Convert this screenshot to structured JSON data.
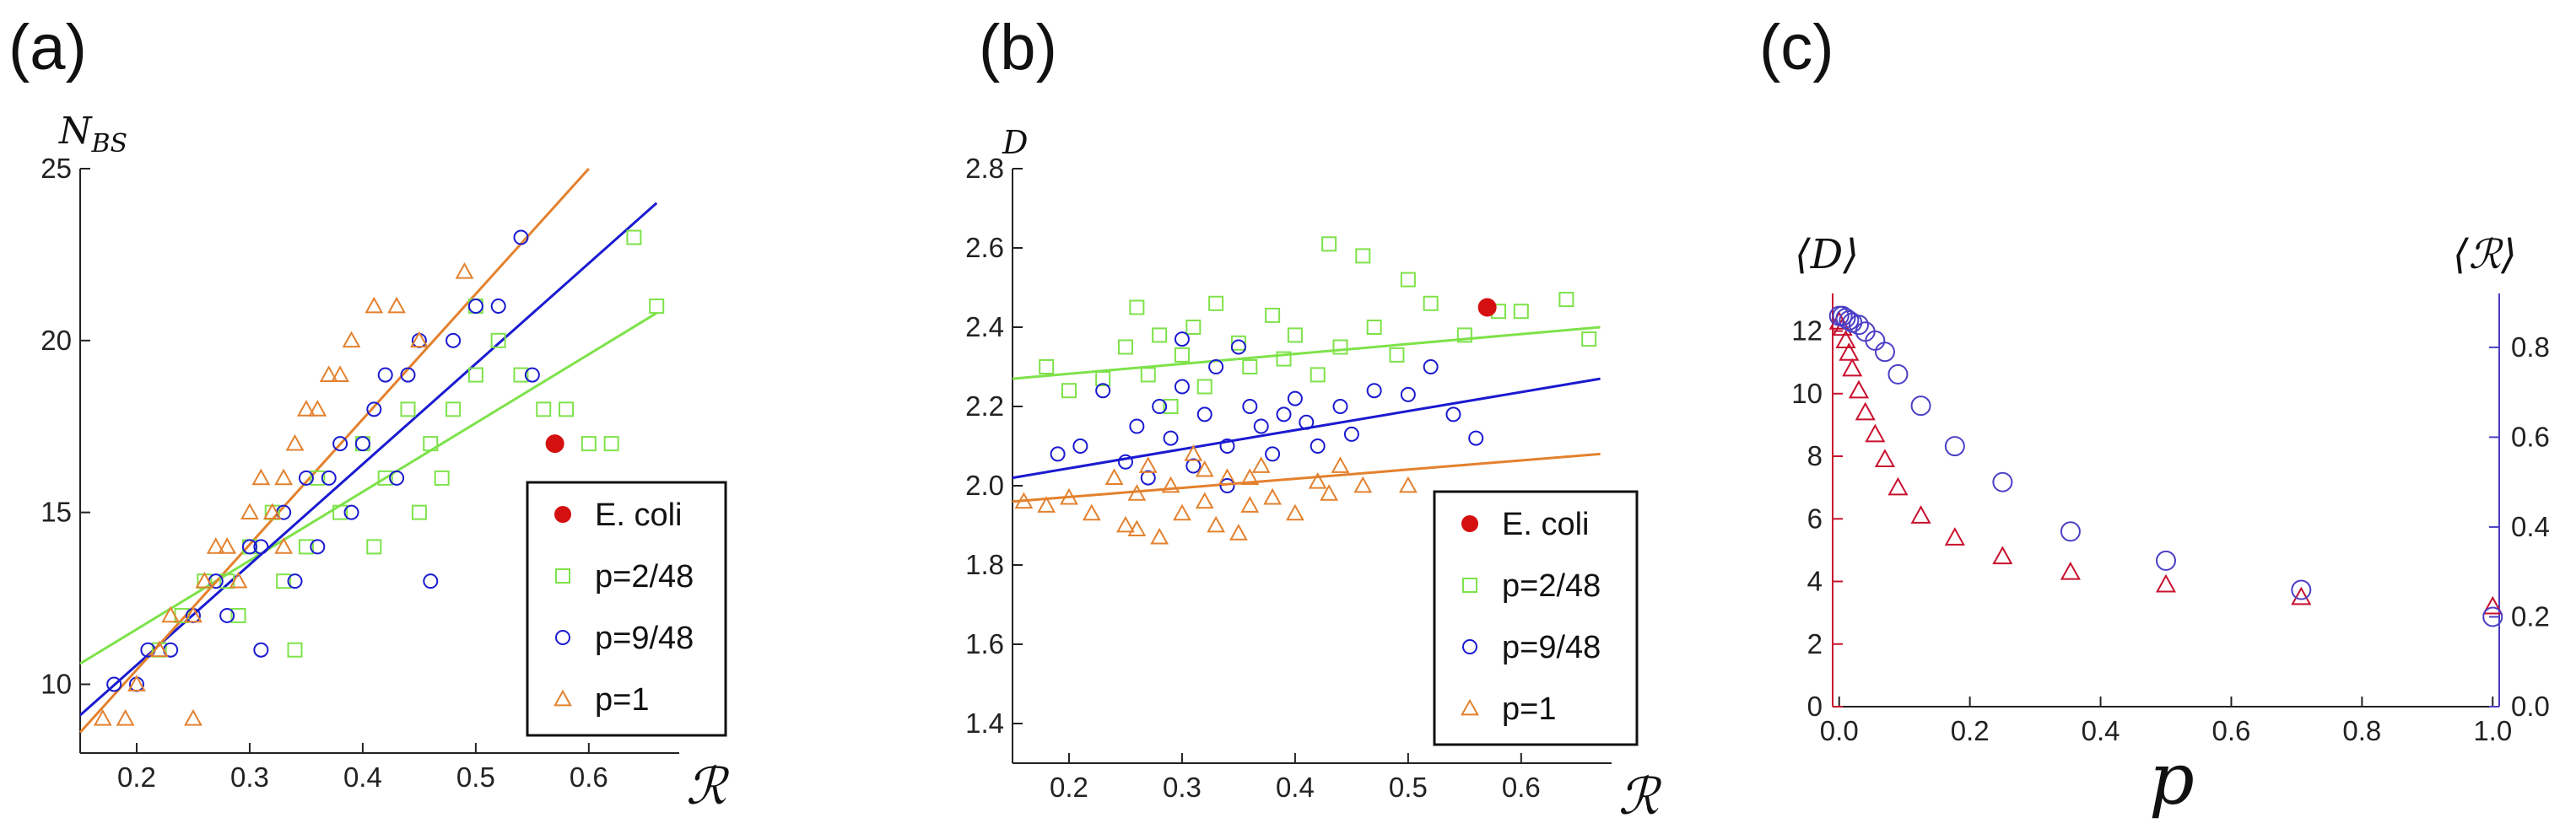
{
  "figure": {
    "colors": {
      "ecoli": "#d41010",
      "p2_48": "#7ee24a",
      "p9_48": "#1a1ad0",
      "p1": "#e3812e",
      "axis": "#222222",
      "c_left_axis": "#c8102e",
      "c_right_axis": "#4b3fc6"
    }
  },
  "chart_data": [
    {
      "id": "a",
      "panel_label": "(a)",
      "type": "scatter",
      "xlabel": "ℛ",
      "ylabel": "N_BS",
      "ylabel_main": "N",
      "ylabel_sub": "BS",
      "xlim": [
        0.15,
        0.68
      ],
      "ylim": [
        8.0,
        25.0
      ],
      "xticks": [
        0.2,
        0.3,
        0.4,
        0.5,
        0.6
      ],
      "yticks": [
        10,
        15,
        20,
        25
      ],
      "legend": {
        "placement": "bottom-right",
        "entries": [
          "E. coli",
          "p=2/48",
          "p=9/48",
          "p=1"
        ]
      },
      "series": [
        {
          "name": "p=2/48",
          "marker": "square",
          "points": [
            [
              0.22,
              11
            ],
            [
              0.24,
              12
            ],
            [
              0.26,
              13
            ],
            [
              0.28,
              13
            ],
            [
              0.3,
              14
            ],
            [
              0.32,
              15
            ],
            [
              0.33,
              13
            ],
            [
              0.35,
              14
            ],
            [
              0.36,
              16
            ],
            [
              0.38,
              15
            ],
            [
              0.4,
              17
            ],
            [
              0.42,
              16
            ],
            [
              0.44,
              18
            ],
            [
              0.46,
              17
            ],
            [
              0.48,
              18
            ],
            [
              0.5,
              19
            ],
            [
              0.52,
              20
            ],
            [
              0.54,
              19
            ],
            [
              0.56,
              18
            ],
            [
              0.58,
              18
            ],
            [
              0.6,
              17
            ],
            [
              0.62,
              17
            ],
            [
              0.64,
              23
            ],
            [
              0.66,
              21
            ],
            [
              0.34,
              11
            ],
            [
              0.29,
              12
            ],
            [
              0.47,
              16
            ],
            [
              0.5,
              21
            ],
            [
              0.45,
              15
            ],
            [
              0.41,
              14
            ]
          ]
        },
        {
          "name": "p=9/48",
          "marker": "circle",
          "points": [
            [
              0.18,
              10
            ],
            [
              0.2,
              10
            ],
            [
              0.21,
              11
            ],
            [
              0.23,
              11
            ],
            [
              0.25,
              12
            ],
            [
              0.27,
              13
            ],
            [
              0.28,
              12
            ],
            [
              0.3,
              14
            ],
            [
              0.31,
              14
            ],
            [
              0.33,
              15
            ],
            [
              0.34,
              13
            ],
            [
              0.35,
              16
            ],
            [
              0.37,
              16
            ],
            [
              0.38,
              17
            ],
            [
              0.4,
              17
            ],
            [
              0.41,
              18
            ],
            [
              0.42,
              19
            ],
            [
              0.44,
              19
            ],
            [
              0.45,
              20
            ],
            [
              0.46,
              13
            ],
            [
              0.48,
              20
            ],
            [
              0.5,
              21
            ],
            [
              0.52,
              21
            ],
            [
              0.54,
              23
            ],
            [
              0.55,
              19
            ],
            [
              0.57,
              17
            ],
            [
              0.36,
              14
            ],
            [
              0.39,
              15
            ],
            [
              0.43,
              16
            ],
            [
              0.31,
              11
            ]
          ]
        },
        {
          "name": "p=1",
          "marker": "triangle",
          "points": [
            [
              0.17,
              9
            ],
            [
              0.19,
              9
            ],
            [
              0.2,
              10
            ],
            [
              0.22,
              11
            ],
            [
              0.23,
              12
            ],
            [
              0.25,
              12
            ],
            [
              0.26,
              13
            ],
            [
              0.27,
              14
            ],
            [
              0.28,
              14
            ],
            [
              0.3,
              15
            ],
            [
              0.31,
              16
            ],
            [
              0.32,
              15
            ],
            [
              0.33,
              16
            ],
            [
              0.34,
              17
            ],
            [
              0.35,
              18
            ],
            [
              0.36,
              18
            ],
            [
              0.37,
              19
            ],
            [
              0.38,
              19
            ],
            [
              0.39,
              20
            ],
            [
              0.41,
              21
            ],
            [
              0.43,
              21
            ],
            [
              0.45,
              20
            ],
            [
              0.49,
              22
            ],
            [
              0.25,
              9
            ],
            [
              0.29,
              13
            ],
            [
              0.33,
              14
            ]
          ]
        },
        {
          "name": "E. coli",
          "marker": "dot",
          "points": [
            [
              0.57,
              17
            ]
          ]
        }
      ],
      "fits": [
        {
          "series": "p=2/48",
          "from": [
            0.15,
            10.6
          ],
          "to": [
            0.66,
            20.8
          ]
        },
        {
          "series": "p=9/48",
          "from": [
            0.15,
            9.1
          ],
          "to": [
            0.66,
            24.0
          ]
        },
        {
          "series": "p=1",
          "from": [
            0.15,
            8.6
          ],
          "to": [
            0.6,
            25.0
          ]
        }
      ]
    },
    {
      "id": "b",
      "panel_label": "(b)",
      "type": "scatter",
      "xlabel": "ℛ",
      "ylabel": "D",
      "xlim": [
        0.15,
        0.68
      ],
      "ylim": [
        1.3,
        2.8
      ],
      "xticks": [
        0.2,
        0.3,
        0.4,
        0.5,
        0.6
      ],
      "yticks": [
        1.4,
        1.6,
        1.8,
        2.0,
        2.2,
        2.4,
        2.6,
        2.8
      ],
      "legend": {
        "placement": "bottom-right",
        "entries": [
          "E. coli",
          "p=2/48",
          "p=9/48",
          "p=1"
        ]
      },
      "series": [
        {
          "name": "p=2/48",
          "marker": "square",
          "points": [
            [
              0.18,
              2.3
            ],
            [
              0.2,
              2.24
            ],
            [
              0.23,
              2.27
            ],
            [
              0.25,
              2.35
            ],
            [
              0.26,
              2.45
            ],
            [
              0.27,
              2.28
            ],
            [
              0.28,
              2.38
            ],
            [
              0.3,
              2.33
            ],
            [
              0.31,
              2.4
            ],
            [
              0.32,
              2.25
            ],
            [
              0.33,
              2.46
            ],
            [
              0.35,
              2.36
            ],
            [
              0.36,
              2.3
            ],
            [
              0.38,
              2.43
            ],
            [
              0.39,
              2.32
            ],
            [
              0.4,
              2.38
            ],
            [
              0.42,
              2.28
            ],
            [
              0.43,
              2.61
            ],
            [
              0.44,
              2.35
            ],
            [
              0.46,
              2.58
            ],
            [
              0.47,
              2.4
            ],
            [
              0.49,
              2.33
            ],
            [
              0.5,
              2.52
            ],
            [
              0.52,
              2.46
            ],
            [
              0.55,
              2.38
            ],
            [
              0.58,
              2.44
            ],
            [
              0.6,
              2.44
            ],
            [
              0.64,
              2.47
            ],
            [
              0.66,
              2.37
            ],
            [
              0.29,
              2.2
            ]
          ]
        },
        {
          "name": "p=9/48",
          "marker": "circle",
          "points": [
            [
              0.19,
              2.08
            ],
            [
              0.21,
              2.1
            ],
            [
              0.23,
              2.24
            ],
            [
              0.25,
              2.06
            ],
            [
              0.26,
              2.15
            ],
            [
              0.28,
              2.2
            ],
            [
              0.29,
              2.12
            ],
            [
              0.3,
              2.25
            ],
            [
              0.31,
              2.05
            ],
            [
              0.32,
              2.18
            ],
            [
              0.33,
              2.3
            ],
            [
              0.34,
              2.1
            ],
            [
              0.35,
              2.35
            ],
            [
              0.36,
              2.2
            ],
            [
              0.37,
              2.15
            ],
            [
              0.38,
              2.08
            ],
            [
              0.39,
              2.18
            ],
            [
              0.4,
              2.22
            ],
            [
              0.42,
              2.1
            ],
            [
              0.44,
              2.2
            ],
            [
              0.45,
              2.13
            ],
            [
              0.47,
              2.24
            ],
            [
              0.5,
              2.23
            ],
            [
              0.52,
              2.3
            ],
            [
              0.54,
              2.18
            ],
            [
              0.56,
              2.12
            ],
            [
              0.27,
              2.02
            ],
            [
              0.34,
              2.0
            ],
            [
              0.41,
              2.16
            ],
            [
              0.3,
              2.37
            ]
          ]
        },
        {
          "name": "p=1",
          "marker": "triangle",
          "points": [
            [
              0.16,
              1.96
            ],
            [
              0.18,
              1.95
            ],
            [
              0.2,
              1.97
            ],
            [
              0.22,
              1.93
            ],
            [
              0.24,
              2.02
            ],
            [
              0.25,
              1.9
            ],
            [
              0.26,
              1.98
            ],
            [
              0.27,
              2.05
            ],
            [
              0.28,
              1.87
            ],
            [
              0.29,
              2.0
            ],
            [
              0.3,
              1.93
            ],
            [
              0.31,
              2.08
            ],
            [
              0.32,
              1.96
            ],
            [
              0.33,
              1.9
            ],
            [
              0.34,
              2.02
            ],
            [
              0.35,
              1.88
            ],
            [
              0.36,
              1.95
            ],
            [
              0.37,
              2.05
            ],
            [
              0.38,
              1.97
            ],
            [
              0.4,
              1.93
            ],
            [
              0.42,
              2.01
            ],
            [
              0.44,
              2.05
            ],
            [
              0.46,
              2.0
            ],
            [
              0.5,
              2.0
            ],
            [
              0.26,
              1.89
            ],
            [
              0.32,
              2.04
            ],
            [
              0.36,
              2.02
            ],
            [
              0.43,
              1.98
            ]
          ]
        },
        {
          "name": "E. coli",
          "marker": "dot",
          "points": [
            [
              0.57,
              2.45
            ]
          ]
        }
      ],
      "fits": [
        {
          "series": "p=2/48",
          "from": [
            0.15,
            2.27
          ],
          "to": [
            0.67,
            2.4
          ]
        },
        {
          "series": "p=9/48",
          "from": [
            0.15,
            2.02
          ],
          "to": [
            0.67,
            2.27
          ]
        },
        {
          "series": "p=1",
          "from": [
            0.15,
            1.96
          ],
          "to": [
            0.67,
            2.08
          ]
        }
      ]
    },
    {
      "id": "c",
      "panel_label": "(c)",
      "type": "scatter",
      "xlabel": "p",
      "ylabel_left": "⟨D⟩",
      "ylabel_right": "⟨ℛ⟩",
      "xlim": [
        -0.01,
        1.01
      ],
      "ylim_left": [
        0,
        13.2
      ],
      "ylim_right": [
        0,
        0.92
      ],
      "xticks": [
        0.0,
        0.2,
        0.4,
        0.6,
        0.8,
        1.0
      ],
      "yticks_left": [
        0,
        2,
        4,
        6,
        8,
        10,
        12
      ],
      "yticks_right": [
        0.0,
        0.2,
        0.4,
        0.6,
        0.8
      ],
      "series": [
        {
          "name": "⟨D⟩",
          "axis": "left",
          "marker": "triangle",
          "points": [
            [
              0.0,
              12.3
            ],
            [
              0.005,
              12.1
            ],
            [
              0.01,
              11.7
            ],
            [
              0.015,
              11.3
            ],
            [
              0.02,
              10.8
            ],
            [
              0.03,
              10.1
            ],
            [
              0.04,
              9.4
            ],
            [
              0.055,
              8.7
            ],
            [
              0.07,
              7.9
            ],
            [
              0.09,
              7.0
            ],
            [
              0.125,
              6.1
            ],
            [
              0.177,
              5.4
            ],
            [
              0.25,
              4.8
            ],
            [
              0.354,
              4.3
            ],
            [
              0.5,
              3.9
            ],
            [
              0.707,
              3.5
            ],
            [
              1.0,
              3.2
            ]
          ]
        },
        {
          "name": "⟨ℛ⟩",
          "axis": "right",
          "marker": "circle",
          "points": [
            [
              0.0,
              0.87
            ],
            [
              0.005,
              0.87
            ],
            [
              0.01,
              0.865
            ],
            [
              0.015,
              0.86
            ],
            [
              0.02,
              0.855
            ],
            [
              0.03,
              0.85
            ],
            [
              0.04,
              0.835
            ],
            [
              0.055,
              0.815
            ],
            [
              0.07,
              0.79
            ],
            [
              0.09,
              0.74
            ],
            [
              0.125,
              0.67
            ],
            [
              0.177,
              0.58
            ],
            [
              0.25,
              0.5
            ],
            [
              0.354,
              0.39
            ],
            [
              0.5,
              0.325
            ],
            [
              0.707,
              0.26
            ],
            [
              1.0,
              0.2
            ]
          ]
        }
      ]
    }
  ]
}
